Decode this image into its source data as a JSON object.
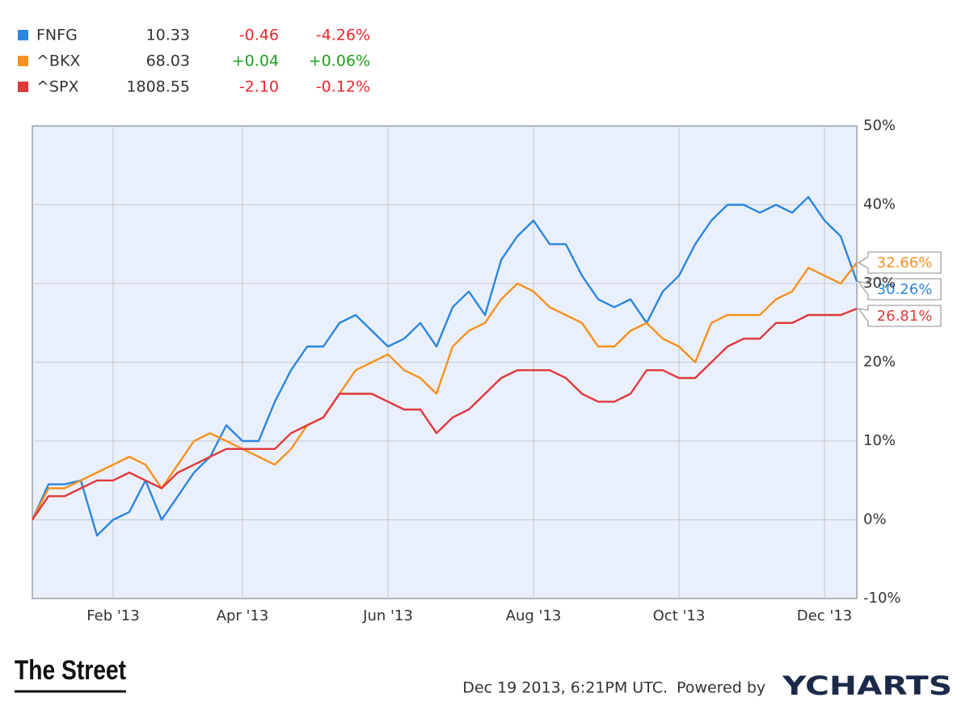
{
  "chart_data": {
    "type": "line",
    "categories": [
      null,
      null,
      null,
      null,
      null,
      "Feb '13",
      null,
      null,
      null,
      null,
      null,
      null,
      null,
      "Apr '13",
      null,
      null,
      null,
      null,
      null,
      null,
      null,
      null,
      "Jun '13",
      null,
      null,
      null,
      null,
      null,
      null,
      null,
      null,
      "Aug '13",
      null,
      null,
      null,
      null,
      null,
      null,
      null,
      null,
      "Oct '13",
      null,
      null,
      null,
      null,
      null,
      null,
      null,
      null,
      "Dec '13",
      null,
      null
    ],
    "ylim": [
      -10,
      50
    ],
    "yticks": [
      {
        "value": -10,
        "label": "-10%"
      },
      {
        "value": 0,
        "label": "0%"
      },
      {
        "value": 10,
        "label": "10%"
      },
      {
        "value": 20,
        "label": "20%"
      },
      {
        "value": 30,
        "label": "30%"
      },
      {
        "value": 40,
        "label": "40%"
      },
      {
        "value": 50,
        "label": "50%"
      }
    ],
    "grid": true,
    "series": [
      {
        "name": "FNFG",
        "color": "#2a86e0",
        "last_price": "10.33",
        "change": "-0.46",
        "change_percent": "-4.26%",
        "change_color": "#e8262b",
        "values": [
          0,
          4.5,
          4.5,
          5,
          -2,
          0,
          1,
          5,
          0,
          3,
          6,
          8,
          12,
          10,
          10,
          15,
          19,
          22,
          22,
          25,
          26,
          24,
          22,
          23,
          25,
          22,
          27,
          29,
          26,
          33,
          36,
          38,
          35,
          35,
          31,
          28,
          27,
          28,
          25,
          29,
          31,
          35,
          38,
          40,
          40,
          39,
          40,
          39,
          41,
          38,
          36,
          30.26
        ],
        "value_labels": [
          null,
          null,
          null,
          null,
          null,
          null,
          null,
          null,
          null,
          null,
          null,
          null,
          null,
          null,
          null,
          null,
          null,
          null,
          null,
          null,
          null,
          null,
          null,
          null,
          null,
          null,
          null,
          null,
          null,
          null,
          null,
          null,
          null,
          null,
          null,
          null,
          null,
          null,
          null,
          null,
          null,
          null,
          null,
          null,
          null,
          null,
          null,
          null,
          null,
          null,
          null,
          "30.26%"
        ]
      },
      {
        "name": "^BKX",
        "color": "#f7901e",
        "last_price": "68.03",
        "change": "+0.04",
        "change_percent": "+0.06%",
        "change_color": "#1e9e1e",
        "values": [
          0,
          4,
          4,
          5,
          6,
          7,
          8,
          7,
          4,
          7,
          10,
          11,
          10,
          9,
          8,
          7,
          9,
          12,
          13,
          16,
          19,
          20,
          21,
          19,
          18,
          16,
          22,
          24,
          25,
          28,
          30,
          29,
          27,
          26,
          25,
          22,
          22,
          24,
          25,
          23,
          22,
          20,
          25,
          26,
          26,
          26,
          28,
          29,
          32,
          31,
          30,
          32.66
        ],
        "value_labels": [
          null,
          null,
          null,
          null,
          null,
          null,
          null,
          null,
          null,
          null,
          null,
          null,
          null,
          null,
          null,
          null,
          null,
          null,
          null,
          null,
          null,
          null,
          null,
          null,
          null,
          null,
          null,
          null,
          null,
          null,
          null,
          null,
          null,
          null,
          null,
          null,
          null,
          null,
          null,
          null,
          null,
          null,
          null,
          null,
          null,
          null,
          null,
          null,
          null,
          null,
          null,
          "32.66%"
        ]
      },
      {
        "name": "^SPX",
        "color": "#e0383c",
        "last_price": "1808.55",
        "change": "-2.10",
        "change_percent": "-0.12%",
        "change_color": "#e8262b",
        "values": [
          0,
          3,
          3,
          4,
          5,
          5,
          6,
          5,
          4,
          6,
          7,
          8,
          9,
          9,
          9,
          9,
          11,
          12,
          13,
          16,
          16,
          16,
          15,
          14,
          14,
          11,
          13,
          14,
          16,
          18,
          19,
          19,
          19,
          18,
          16,
          15,
          15,
          16,
          19,
          19,
          18,
          18,
          20,
          22,
          23,
          23,
          25,
          25,
          26,
          26,
          26,
          26.81
        ],
        "value_labels": [
          null,
          null,
          null,
          null,
          null,
          null,
          null,
          null,
          null,
          null,
          null,
          null,
          null,
          null,
          null,
          null,
          null,
          null,
          null,
          null,
          null,
          null,
          null,
          null,
          null,
          null,
          null,
          null,
          null,
          null,
          null,
          null,
          null,
          null,
          null,
          null,
          null,
          null,
          null,
          null,
          null,
          null,
          null,
          null,
          null,
          null,
          null,
          null,
          null,
          null,
          null,
          "26.81%"
        ]
      }
    ],
    "footer": {
      "brand": "The Street",
      "timestamp": "Dec 19 2013, 6:21PM UTC.",
      "powered_by": "Powered by",
      "provider": "YCHARTS"
    }
  }
}
